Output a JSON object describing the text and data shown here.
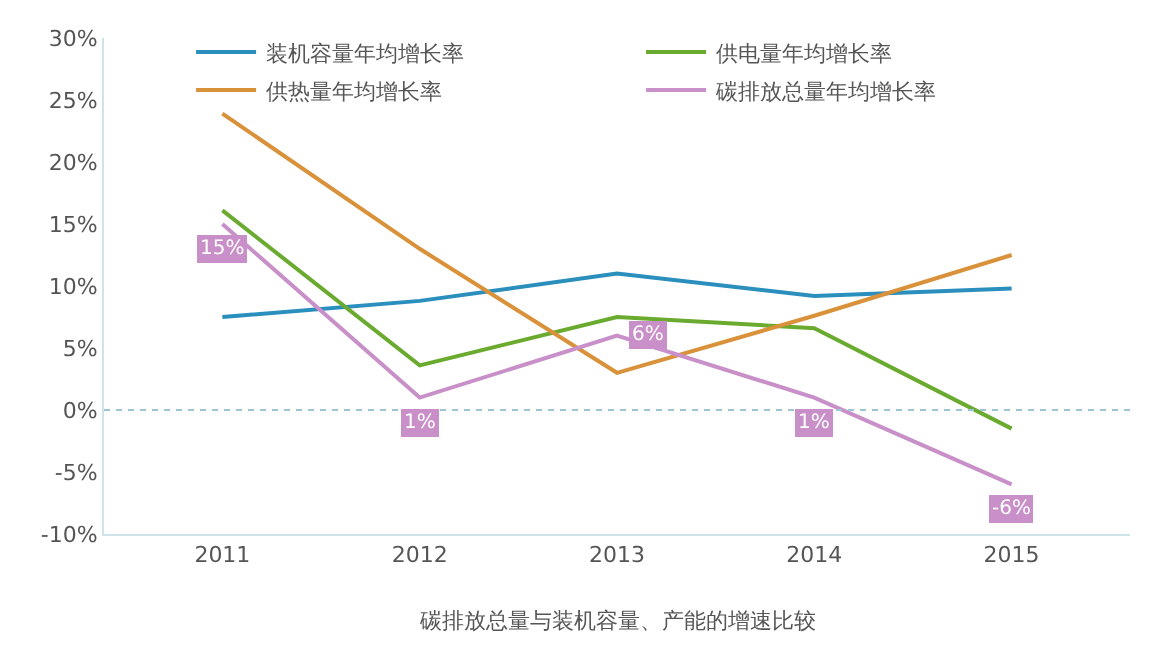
{
  "chart_data": {
    "type": "line",
    "categories": [
      "2011",
      "2012",
      "2013",
      "2014",
      "2015"
    ],
    "series": [
      {
        "name": "装机容量年均增长率",
        "color": "#2a8fbd",
        "values": [
          7.5,
          8.8,
          11,
          9.2,
          9.8
        ]
      },
      {
        "name": "供电量年均增长率",
        "color": "#6aab2f",
        "values": [
          16.1,
          3.6,
          7.5,
          6.6,
          -1.5
        ]
      },
      {
        "name": "供热量年均增长率",
        "color": "#d9913a",
        "values": [
          23.9,
          13,
          3,
          7.6,
          12.5
        ]
      },
      {
        "name": "碳排放总量年均增长率",
        "color": "#c88fc8",
        "values": [
          15,
          1,
          6,
          1,
          -6
        ],
        "value_labels": [
          "15%",
          "1%",
          "6%",
          "1%",
          "-6%"
        ]
      }
    ],
    "ylim": [
      -10,
      30
    ],
    "yticks": [
      {
        "value": -10,
        "label": "-10%"
      },
      {
        "value": -5,
        "label": "-5%"
      },
      {
        "value": 0,
        "label": "0%"
      },
      {
        "value": 5,
        "label": "5%"
      },
      {
        "value": 10,
        "label": "10%"
      },
      {
        "value": 15,
        "label": "15%"
      },
      {
        "value": 20,
        "label": "20%"
      },
      {
        "value": 25,
        "label": "25%"
      },
      {
        "value": 30,
        "label": "30%"
      }
    ],
    "ref_lines": [
      {
        "axis": "y",
        "value": 0,
        "color": "#9cc4d4",
        "line_style": "dotted"
      }
    ],
    "legend": "top",
    "marker": "none",
    "line_style": "solid",
    "annotations": [
      "碳排放总量与装机容量、产能的增速比较"
    ]
  }
}
